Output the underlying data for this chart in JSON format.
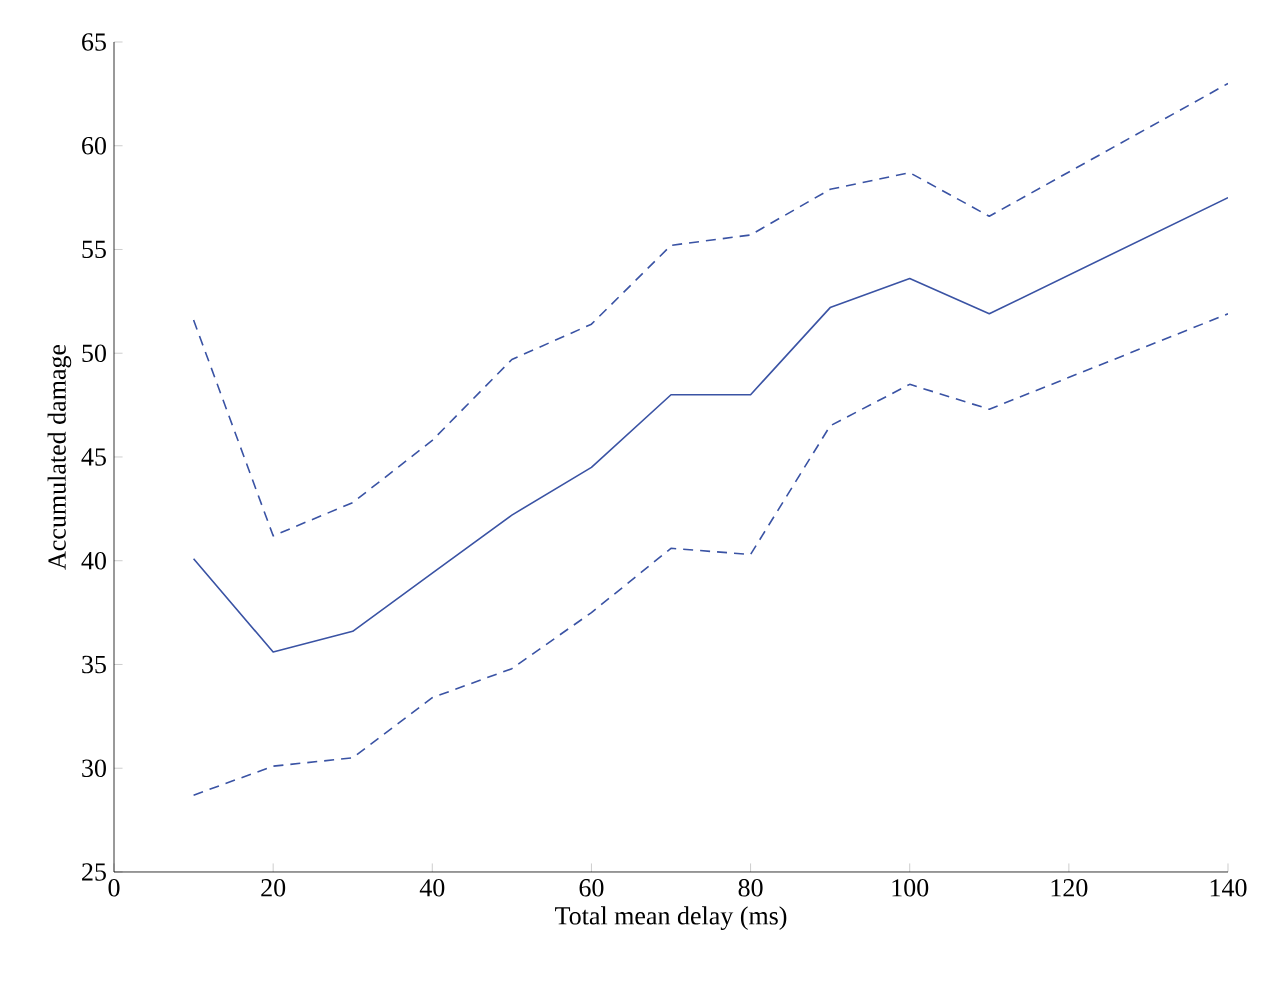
{
  "chart_data": {
    "type": "line",
    "xlabel": "Total mean delay (ms)",
    "ylabel": "Accumulated damage",
    "x": [
      10,
      20,
      30,
      40,
      50,
      60,
      70,
      80,
      90,
      100,
      110,
      140
    ],
    "series": [
      {
        "color": "#3a53a4",
        "line_style": "dashed",
        "values": [
          51.6,
          41.2,
          42.8,
          45.8,
          49.7,
          51.4,
          55.2,
          55.7,
          57.9,
          58.7,
          56.6,
          63.0
        ]
      },
      {
        "color": "#3a53a4",
        "line_style": "solid",
        "values": [
          40.1,
          35.6,
          36.6,
          39.4,
          42.2,
          44.5,
          48.0,
          48.0,
          52.2,
          53.6,
          51.9,
          57.5
        ]
      },
      {
        "color": "#3a53a4",
        "line_style": "dashed",
        "values": [
          28.7,
          30.1,
          30.5,
          33.4,
          34.8,
          37.5,
          40.6,
          40.3,
          46.5,
          48.5,
          47.3,
          51.9
        ]
      }
    ],
    "xlim": [
      0,
      140
    ],
    "ylim": [
      25,
      65
    ],
    "xticks": [
      0,
      20,
      40,
      60,
      80,
      100,
      120,
      140
    ],
    "yticks": [
      25,
      30,
      35,
      40,
      45,
      50,
      55,
      60,
      65
    ],
    "grid": false,
    "marker": "none"
  }
}
